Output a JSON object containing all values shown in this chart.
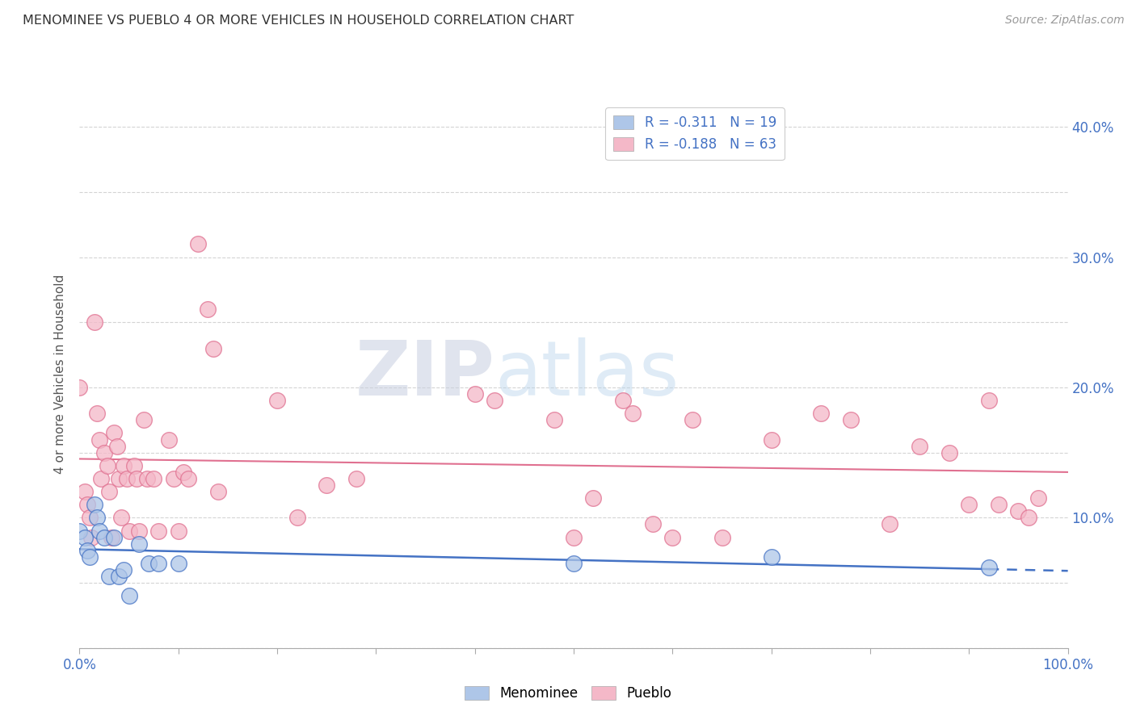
{
  "title": "MENOMINEE VS PUEBLO 4 OR MORE VEHICLES IN HOUSEHOLD CORRELATION CHART",
  "source": "Source: ZipAtlas.com",
  "ylabel": "4 or more Vehicles in Household",
  "xlim": [
    0,
    1.0
  ],
  "ylim": [
    0,
    0.42
  ],
  "menominee_R": "-0.311",
  "menominee_N": "19",
  "pueblo_R": "-0.188",
  "pueblo_N": "63",
  "menominee_color": "#aec6e8",
  "pueblo_color": "#f4b8c8",
  "menominee_line_color": "#4472c4",
  "pueblo_line_color": "#e07090",
  "tick_label_color": "#4472c4",
  "watermark_zip_color": "#d0d8e8",
  "watermark_atlas_color": "#c8ddf0",
  "menominee_x": [
    0.0,
    0.005,
    0.008,
    0.01,
    0.015,
    0.018,
    0.02,
    0.025,
    0.03,
    0.035,
    0.04,
    0.045,
    0.05,
    0.06,
    0.07,
    0.08,
    0.1,
    0.5,
    0.7,
    0.92
  ],
  "menominee_y": [
    0.09,
    0.085,
    0.075,
    0.07,
    0.11,
    0.1,
    0.09,
    0.085,
    0.055,
    0.085,
    0.055,
    0.06,
    0.04,
    0.08,
    0.065,
    0.065,
    0.065,
    0.065,
    0.07,
    0.062
  ],
  "pueblo_x": [
    0.0,
    0.005,
    0.008,
    0.01,
    0.012,
    0.015,
    0.018,
    0.02,
    0.022,
    0.025,
    0.028,
    0.03,
    0.032,
    0.035,
    0.038,
    0.04,
    0.042,
    0.045,
    0.048,
    0.05,
    0.055,
    0.058,
    0.06,
    0.065,
    0.068,
    0.075,
    0.08,
    0.09,
    0.095,
    0.1,
    0.105,
    0.11,
    0.12,
    0.13,
    0.135,
    0.14,
    0.2,
    0.22,
    0.25,
    0.28,
    0.4,
    0.42,
    0.48,
    0.5,
    0.52,
    0.55,
    0.56,
    0.58,
    0.6,
    0.62,
    0.65,
    0.7,
    0.75,
    0.78,
    0.82,
    0.85,
    0.88,
    0.9,
    0.92,
    0.93,
    0.95,
    0.96,
    0.97
  ],
  "pueblo_y": [
    0.2,
    0.12,
    0.11,
    0.1,
    0.085,
    0.25,
    0.18,
    0.16,
    0.13,
    0.15,
    0.14,
    0.12,
    0.085,
    0.165,
    0.155,
    0.13,
    0.1,
    0.14,
    0.13,
    0.09,
    0.14,
    0.13,
    0.09,
    0.175,
    0.13,
    0.13,
    0.09,
    0.16,
    0.13,
    0.09,
    0.135,
    0.13,
    0.31,
    0.26,
    0.23,
    0.12,
    0.19,
    0.1,
    0.125,
    0.13,
    0.195,
    0.19,
    0.175,
    0.085,
    0.115,
    0.19,
    0.18,
    0.095,
    0.085,
    0.175,
    0.085,
    0.16,
    0.18,
    0.175,
    0.095,
    0.155,
    0.15,
    0.11,
    0.19,
    0.11,
    0.105,
    0.1,
    0.115
  ]
}
